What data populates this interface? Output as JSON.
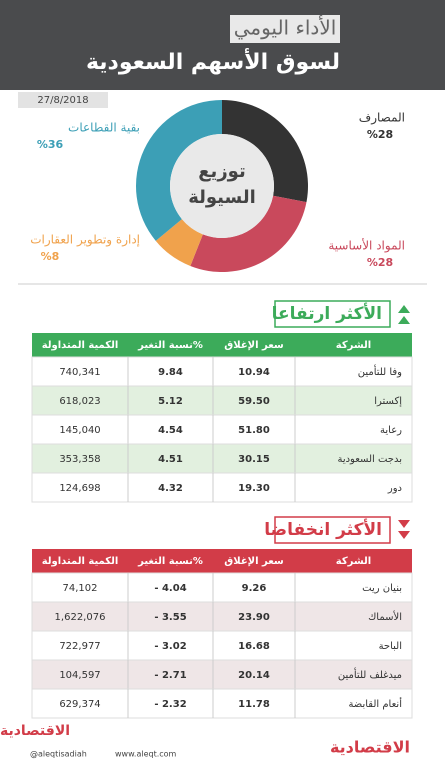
{
  "header": {
    "title": "الأداء اليومي",
    "subtitle": "لسوق الأسهم السعودية",
    "date": "27/8/2018"
  },
  "chart_data": {
    "type": "pie",
    "title": [
      "توزيع",
      "السيولة"
    ],
    "categories": [
      "المصارف",
      "المواد الأساسية",
      "إدارة وتطوير العقارات",
      "بقية القطاعات"
    ],
    "values": [
      28,
      28,
      8,
      36
    ],
    "value_labels": [
      "%28",
      "%28",
      "%8",
      "%36"
    ],
    "colors": [
      "#333333",
      "#c9495c",
      "#f0a24c",
      "#3c9fb6"
    ]
  },
  "tables": [
    {
      "title": "الأكثر ارتفاعا",
      "color": "#3cab5a",
      "row_color": "#e2f0df",
      "columns": [
        "الشركة",
        "سعر الإغلاق",
        "نسبة التغير%",
        "الكمية المتداولة"
      ],
      "rows": [
        [
          "وفا للتأمين",
          "10.94",
          "9.84",
          "740,341"
        ],
        [
          "إكسترا",
          "59.50",
          "5.12",
          "618,023"
        ],
        [
          "رعاية",
          "51.80",
          "4.54",
          "145,040"
        ],
        [
          "بدجت السعودية",
          "30.15",
          "4.51",
          "353,358"
        ],
        [
          "دور",
          "19.30",
          "4.32",
          "124,698"
        ]
      ]
    },
    {
      "title": "الأكثر انخفاضا",
      "color": "#d23c48",
      "row_color": "#efe6e7",
      "columns": [
        "الشركة",
        "سعر الإغلاق",
        "نسبة التغير%",
        "الكمية المتداولة"
      ],
      "rows": [
        [
          "بنيان ريت",
          "9.26",
          "- 4.04",
          "74,102"
        ],
        [
          "الأسماك",
          "23.90",
          "- 3.55",
          "1,622,076"
        ],
        [
          "الباحة",
          "16.68",
          "- 3.02",
          "722,977"
        ],
        [
          "ميدغلف للتأمين",
          "20.14",
          "- 2.71",
          "104,597"
        ],
        [
          "أنعام القابضة",
          "11.78",
          "- 2.32",
          "629,374"
        ]
      ]
    }
  ],
  "footer": {
    "logo": "الاقتصادية",
    "twitter": "@aleqtisadiah",
    "site": "www.aleqt.com"
  }
}
